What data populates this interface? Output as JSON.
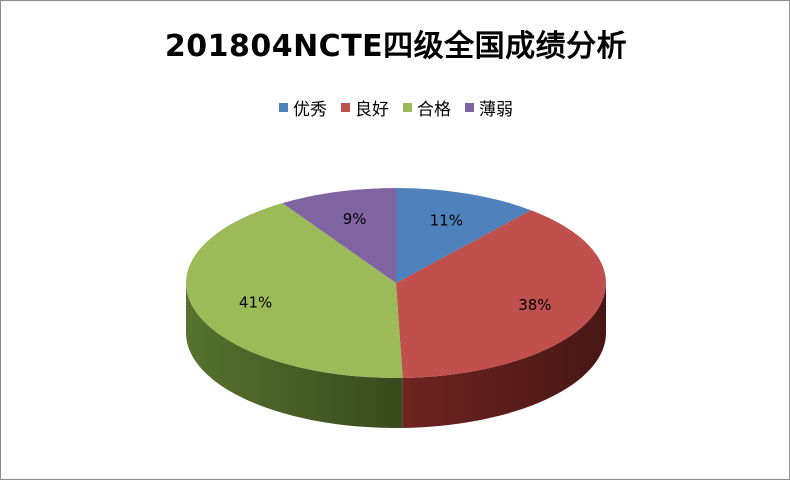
{
  "chart_data": {
    "type": "pie",
    "title": "201804NCTE四级全国成绩分析",
    "categories": [
      "优秀",
      "良好",
      "合格",
      "薄弱"
    ],
    "values": [
      11,
      38,
      41,
      9
    ],
    "labels": [
      "11%",
      "38%",
      "41%",
      "9%"
    ],
    "colors": [
      "#4f81bd",
      "#c0504d",
      "#9bbb59",
      "#8064a2"
    ],
    "side_colors": [
      "#2f4e78",
      "#6e2320",
      "#55722d",
      "#4a3a66"
    ],
    "legend_position": "top",
    "style": "3d"
  }
}
